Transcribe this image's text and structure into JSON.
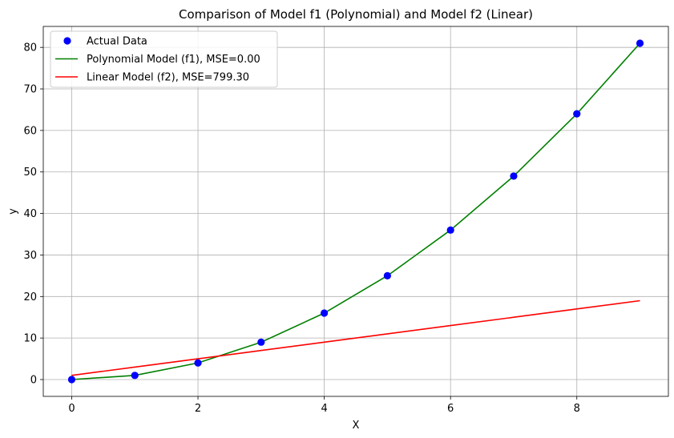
{
  "chart_data": {
    "type": "line",
    "title": "Comparison of Model f1 (Polynomial) and Model f2 (Linear)",
    "xlabel": "X",
    "ylabel": "y",
    "xlim": [
      -0.45,
      9.45
    ],
    "ylim": [
      -4.05,
      85.05
    ],
    "xticks": [
      0,
      2,
      4,
      6,
      8
    ],
    "yticks": [
      0,
      10,
      20,
      30,
      40,
      50,
      60,
      70,
      80
    ],
    "grid": true,
    "legend_position": "upper-left",
    "x": [
      0,
      1,
      2,
      3,
      4,
      5,
      6,
      7,
      8,
      9
    ],
    "series": [
      {
        "name": "Actual Data",
        "kind": "scatter",
        "color": "#0000ff",
        "values": [
          0,
          1,
          4,
          9,
          16,
          25,
          36,
          49,
          64,
          81
        ]
      },
      {
        "name": "Polynomial Model (f1), MSE=0.00",
        "kind": "line",
        "color": "#008000",
        "values": [
          0,
          1,
          4,
          9,
          16,
          25,
          36,
          49,
          64,
          81
        ]
      },
      {
        "name": "Linear Model (f2), MSE=799.30",
        "kind": "line",
        "color": "#ff0000",
        "values": [
          1,
          3,
          5,
          7,
          9,
          11,
          13,
          15,
          17,
          19
        ]
      }
    ]
  }
}
